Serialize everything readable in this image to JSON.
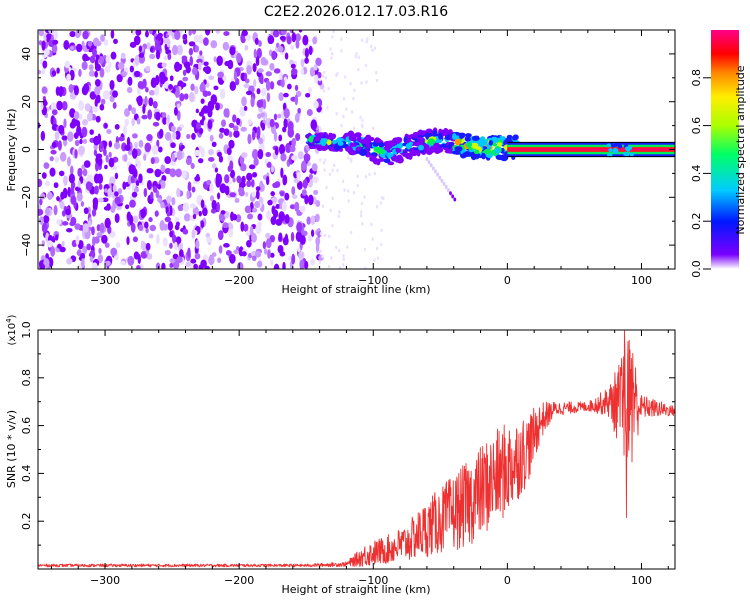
{
  "title": "C2E2.2026.012.17.03.R16",
  "chart_data": [
    {
      "type": "heatmap",
      "title": "C2E2.2026.012.17.03.R16",
      "xlabel": "Height of straight line (km)",
      "ylabel": "Frequency (Hz)",
      "xlim": [
        -350,
        125
      ],
      "ylim": [
        -50,
        50
      ],
      "xticks": [
        -300,
        -200,
        -100,
        0,
        100
      ],
      "yticks": [
        -40,
        -20,
        0,
        20,
        40
      ],
      "noise_region_x": [
        -350,
        -142
      ],
      "signal_track": [
        {
          "x": -148,
          "freq": 4
        },
        {
          "x": -130,
          "freq": 3
        },
        {
          "x": -110,
          "freq": 2
        },
        {
          "x": -90,
          "freq": -2
        },
        {
          "x": -70,
          "freq": 2
        },
        {
          "x": -55,
          "freq": 4
        },
        {
          "x": -40,
          "freq": 3
        },
        {
          "x": -25,
          "freq": 1
        },
        {
          "x": -10,
          "freq": 1
        },
        {
          "x": 0,
          "freq": 1
        },
        {
          "x": 125,
          "freq": 0
        }
      ],
      "colorbar": {
        "label": "Normalized spectral amplitude",
        "range": [
          0,
          1
        ],
        "ticks": [
          "0.0",
          "0.2",
          "0.4",
          "0.6",
          "0.8"
        ]
      }
    },
    {
      "type": "line",
      "xlabel": "Height of straight line (km)",
      "ylabel": "SNR (10 * v/v)",
      "y_multiplier": "(x10",
      "y_multiplier_exp": "4",
      "xlim": [
        -350,
        125
      ],
      "ylim": [
        0,
        1.0
      ],
      "xticks": [
        -300,
        -200,
        -100,
        0,
        100
      ],
      "yticks": [
        "0.2",
        "0.4",
        "0.6",
        "0.8",
        "1.0"
      ],
      "color": "#ee3030",
      "envelope": [
        {
          "x": -350,
          "mean": 0.015,
          "amp": 0.006
        },
        {
          "x": -150,
          "mean": 0.015,
          "amp": 0.006
        },
        {
          "x": -120,
          "mean": 0.02,
          "amp": 0.01
        },
        {
          "x": -105,
          "mean": 0.06,
          "amp": 0.05
        },
        {
          "x": -90,
          "mean": 0.08,
          "amp": 0.06
        },
        {
          "x": -75,
          "mean": 0.11,
          "amp": 0.08
        },
        {
          "x": -60,
          "mean": 0.17,
          "amp": 0.12
        },
        {
          "x": -45,
          "mean": 0.22,
          "amp": 0.15
        },
        {
          "x": -30,
          "mean": 0.27,
          "amp": 0.18
        },
        {
          "x": -15,
          "mean": 0.35,
          "amp": 0.2
        },
        {
          "x": 0,
          "mean": 0.42,
          "amp": 0.2
        },
        {
          "x": 15,
          "mean": 0.5,
          "amp": 0.15
        },
        {
          "x": 25,
          "mean": 0.62,
          "amp": 0.08
        },
        {
          "x": 35,
          "mean": 0.67,
          "amp": 0.03
        },
        {
          "x": 60,
          "mean": 0.68,
          "amp": 0.02
        },
        {
          "x": 75,
          "mean": 0.7,
          "amp": 0.06
        },
        {
          "x": 85,
          "mean": 0.69,
          "amp": 0.2
        },
        {
          "x": 92,
          "mean": 0.7,
          "amp": 0.3
        },
        {
          "x": 100,
          "mean": 0.68,
          "amp": 0.05
        },
        {
          "x": 125,
          "mean": 0.66,
          "amp": 0.02
        }
      ]
    }
  ]
}
